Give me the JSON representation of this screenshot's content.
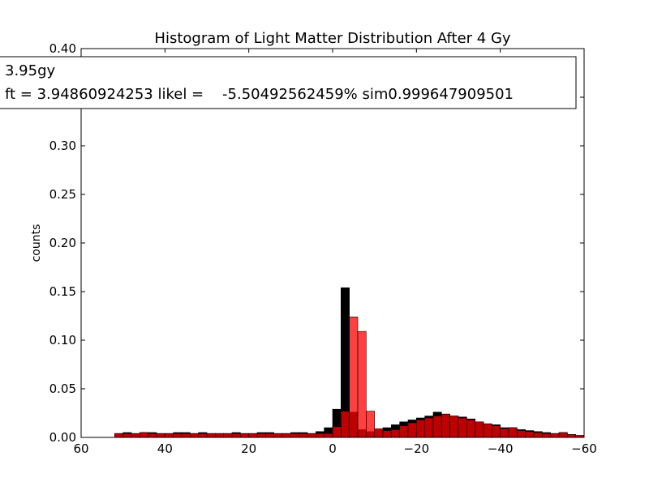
{
  "chart_data": {
    "type": "bar",
    "title": "Histogram of Light Matter Distribution After 4 Gy",
    "xlabel": "",
    "ylabel": "counts",
    "xlim": [
      60,
      -60
    ],
    "ylim": [
      0,
      0.4
    ],
    "x_reversed": true,
    "grid": false,
    "x_ticks": [
      60,
      40,
      20,
      0,
      -20,
      -40,
      -60
    ],
    "x_tick_labels": [
      "60",
      "40",
      "20",
      "0",
      "−20",
      "−40",
      "−60"
    ],
    "y_ticks": [
      0.0,
      0.05,
      0.1,
      0.15,
      0.2,
      0.25,
      0.3,
      0.35,
      0.4
    ],
    "y_tick_labels": [
      "0.00",
      "0.05",
      "0.10",
      "0.15",
      "0.20",
      "0.25",
      "0.30",
      "",
      "0.40"
    ],
    "legend_lines": [
      "3.95gy",
      "ft = 3.94860924253 likel =    -5.50492562459% sim0.999647909501"
    ],
    "legend_location": "top",
    "bin_width": 2,
    "series": [
      {
        "color": "#000000",
        "opacity": 1.0,
        "bins_start": [
          52,
          50,
          48,
          46,
          44,
          42,
          40,
          38,
          36,
          34,
          32,
          30,
          28,
          26,
          24,
          22,
          20,
          18,
          16,
          14,
          12,
          10,
          8,
          6,
          4,
          2,
          0,
          -2,
          -4,
          -6,
          -8,
          -10,
          -12,
          -14,
          -16,
          -18,
          -20,
          -22,
          -24,
          -26,
          -28,
          -30,
          -32,
          -34,
          -36,
          -38,
          -40,
          -42,
          -44,
          -46,
          -48,
          -50,
          -52,
          -54,
          -56,
          -58
        ],
        "values": [
          0.004,
          0.005,
          0.004,
          0.005,
          0.005,
          0.004,
          0.004,
          0.005,
          0.005,
          0.004,
          0.005,
          0.004,
          0.004,
          0.004,
          0.005,
          0.004,
          0.004,
          0.005,
          0.005,
          0.004,
          0.004,
          0.005,
          0.005,
          0.004,
          0.006,
          0.01,
          0.029,
          0.154,
          0.026,
          0.008,
          0.006,
          0.008,
          0.01,
          0.013,
          0.016,
          0.018,
          0.02,
          0.022,
          0.026,
          0.024,
          0.022,
          0.021,
          0.019,
          0.016,
          0.014,
          0.013,
          0.01,
          0.01,
          0.008,
          0.007,
          0.006,
          0.005,
          0.004,
          0.005,
          0.003,
          0.002
        ]
      },
      {
        "color": "#ff0000",
        "opacity": 0.75,
        "bins_start": [
          52,
          50,
          48,
          46,
          44,
          42,
          40,
          38,
          36,
          34,
          32,
          30,
          28,
          26,
          24,
          22,
          20,
          18,
          16,
          14,
          12,
          10,
          8,
          6,
          4,
          2,
          0,
          -2,
          -4,
          -6,
          -8,
          -10,
          -12,
          -14,
          -16,
          -18,
          -20,
          -22,
          -24,
          -26,
          -28,
          -30,
          -32,
          -34,
          -36,
          -38,
          -40,
          -42,
          -44,
          -46,
          -48,
          -50,
          -52,
          -54,
          -56,
          -58
        ],
        "values": [
          0.004,
          0.004,
          0.004,
          0.005,
          0.004,
          0.004,
          0.004,
          0.004,
          0.004,
          0.004,
          0.004,
          0.004,
          0.004,
          0.004,
          0.004,
          0.004,
          0.004,
          0.004,
          0.004,
          0.004,
          0.004,
          0.004,
          0.004,
          0.004,
          0.004,
          0.004,
          0.011,
          0.027,
          0.124,
          0.109,
          0.027,
          0.009,
          0.007,
          0.008,
          0.012,
          0.015,
          0.018,
          0.02,
          0.022,
          0.024,
          0.022,
          0.02,
          0.018,
          0.016,
          0.014,
          0.012,
          0.009,
          0.01,
          0.007,
          0.006,
          0.005,
          0.004,
          0.004,
          0.005,
          0.003,
          0.002
        ]
      }
    ]
  }
}
